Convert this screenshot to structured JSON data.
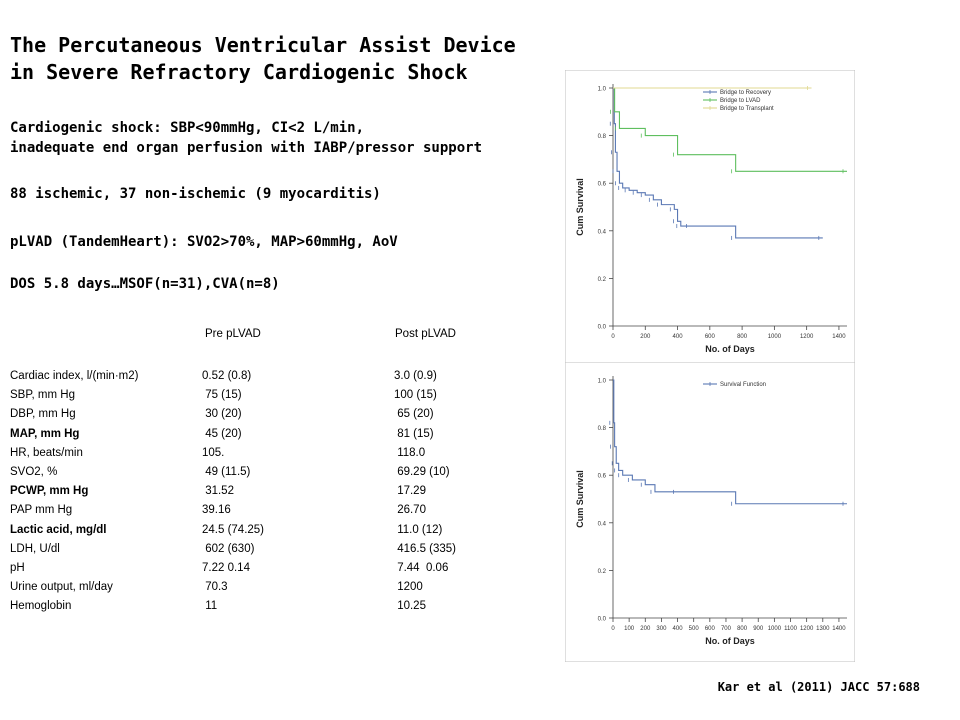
{
  "title": {
    "line1": "The Percutaneous Ventricular Assist Device",
    "line2": "in Severe Refractory Cardiogenic Shock"
  },
  "bullets": {
    "definition": {
      "line1": "Cardiogenic shock: SBP<90mmHg, CI<2 L/min,",
      "line2": "inadequate end organ perfusion with IABP/pressor support"
    },
    "population": "88 ischemic, 37 non-ischemic (9 myocarditis)",
    "device": "pLVAD (TandemHeart): SVO2>70%, MAP>60mmHg, AoV",
    "outcome": "DOS 5.8 days…MSOF(n=31),CVA(n=8)"
  },
  "table": {
    "headers": [
      "",
      "Pre pLVAD",
      "Post pLVAD"
    ],
    "rows": [
      {
        "label": "Cardiac index, l/(min·m2)",
        "pre": "0.52 (0.8)",
        "post": "3.0 (0.9)",
        "bold": false
      },
      {
        "label": "SBP, mm Hg",
        "pre": " 75 (15)",
        "post": "100 (15)",
        "bold": false
      },
      {
        "label": "DBP, mm Hg",
        "pre": " 30 (20)",
        "post": " 65 (20)",
        "bold": false
      },
      {
        "label": "MAP, mm Hg",
        "pre": " 45 (20)",
        "post": " 81 (15)",
        "bold": true
      },
      {
        "label": "HR, beats/min",
        "pre": "105.",
        "post": " 118.0",
        "bold": false
      },
      {
        "label": "SVO2, %",
        "pre": " 49 (11.5)",
        "post": " 69.29 (10)",
        "bold": false
      },
      {
        "label": "PCWP, mm Hg",
        "pre": " 31.52",
        "post": " 17.29",
        "bold": true
      },
      {
        "label": "PAP mm Hg",
        "pre": "39.16",
        "post": " 26.70",
        "bold": false
      },
      {
        "label": "Lactic acid, mg/dl",
        "pre": "24.5 (74.25)",
        "post": " 11.0 (12)",
        "bold": true
      },
      {
        "label": "LDH, U/dl",
        "pre": " 602 (630)",
        "post": " 416.5 (335)",
        "bold": false
      },
      {
        "label": "pH",
        "pre": "7.22 0.14",
        "post": " 7.44  0.06",
        "bold": false
      },
      {
        "label": "Urine output, ml/day",
        "pre": " 70.3",
        "post": " 1200",
        "bold": false
      },
      {
        "label": "Hemoglobin",
        "pre": " 11",
        "post": " 10.25",
        "bold": false
      }
    ]
  },
  "citation": "Kar et al (2011) JACC 57:688",
  "chart_data": [
    {
      "type": "line",
      "step": true,
      "xlabel": "No. of Days",
      "ylabel": "Cum Survival",
      "xlim": [
        0,
        1450
      ],
      "ylim": [
        0,
        1.0
      ],
      "xticks": [
        0,
        200,
        400,
        600,
        800,
        1000,
        1200,
        1400
      ],
      "yticks": [
        0.0,
        0.2,
        0.4,
        0.6,
        0.8,
        1.0
      ],
      "xtick_labels": [
        "0",
        "200",
        "400",
        "600",
        "800",
        "1000",
        "1200",
        "1400"
      ],
      "ytick_labels": [
        "0.0",
        "0.2",
        "0.4",
        "0.6",
        "0.8",
        "1.0"
      ],
      "grid": false,
      "legend": "top-center",
      "series": [
        {
          "name": "Bridge to Recovery",
          "color": "#5a78b4",
          "x": [
            0,
            8,
            15,
            25,
            40,
            60,
            100,
            150,
            200,
            250,
            300,
            380,
            400,
            420,
            480,
            760,
            1300
          ],
          "y": [
            1.0,
            0.85,
            0.73,
            0.65,
            0.6,
            0.58,
            0.57,
            0.56,
            0.55,
            0.53,
            0.51,
            0.49,
            0.44,
            0.42,
            0.42,
            0.37,
            0.37
          ]
        },
        {
          "name": "Bridge to LVAD",
          "color": "#5fbf5f",
          "x": [
            0,
            10,
            40,
            200,
            400,
            760,
            1450
          ],
          "y": [
            1.0,
            0.9,
            0.83,
            0.8,
            0.72,
            0.65,
            0.65
          ]
        },
        {
          "name": "Bridge to Transplant",
          "color": "#e0d890",
          "x": [
            0,
            1230
          ],
          "y": [
            1.0,
            1.0
          ]
        }
      ]
    },
    {
      "type": "line",
      "step": true,
      "xlabel": "No. of Days",
      "ylabel": "Cum Survival",
      "xlim": [
        0,
        1450
      ],
      "ylim": [
        0,
        1.0
      ],
      "xticks": [
        0,
        100,
        200,
        300,
        400,
        500,
        600,
        700,
        800,
        900,
        1000,
        1100,
        1200,
        1300,
        1400
      ],
      "yticks": [
        0.0,
        0.2,
        0.4,
        0.6,
        0.8,
        1.0
      ],
      "xtick_labels": [
        "0",
        "100",
        "200",
        "300",
        "400",
        "500",
        "600",
        "700",
        "800",
        "900",
        "1000",
        "1100",
        "1200",
        "1300",
        "1400"
      ],
      "ytick_labels": [
        "0.0",
        "0.2",
        "0.4",
        "0.6",
        "0.8",
        "1.0"
      ],
      "grid": false,
      "legend": "top-center",
      "series": [
        {
          "name": "Survival Function",
          "color": "#5a78b4",
          "x": [
            0,
            5,
            10,
            20,
            35,
            60,
            120,
            200,
            260,
            400,
            760,
            1450
          ],
          "y": [
            1.0,
            0.82,
            0.72,
            0.65,
            0.62,
            0.6,
            0.58,
            0.56,
            0.53,
            0.53,
            0.48,
            0.48
          ]
        }
      ]
    }
  ]
}
